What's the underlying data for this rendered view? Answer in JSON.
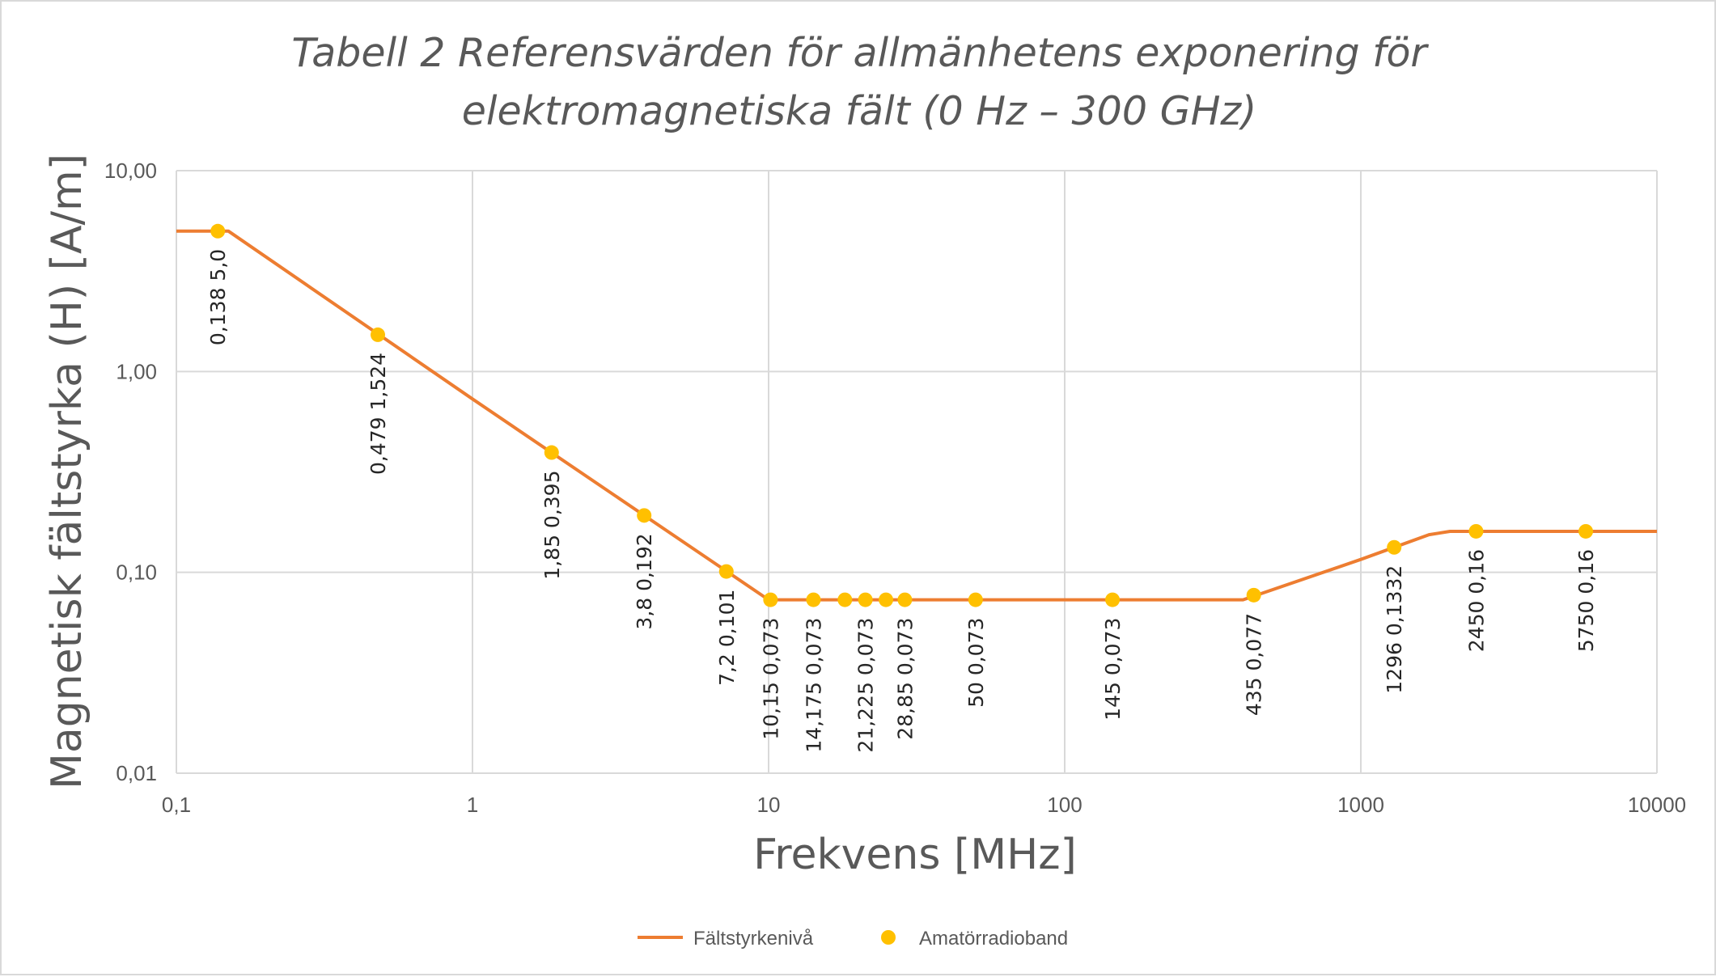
{
  "chart_data": {
    "type": "line",
    "title_lines": [
      "Tabell 2 Referensvärden för allmänhetens exponering för",
      "elektromagnetiska fält (0 Hz – 300 GHz)"
    ],
    "xlabel": "Frekvens [MHz]",
    "ylabel": "Magnetisk fältstyrka (H)  [A/m]",
    "x_scale": "log",
    "y_scale": "log",
    "xlim": [
      0.1,
      10000
    ],
    "ylim": [
      0.01,
      10
    ],
    "grid": true,
    "legend_position": "bottom",
    "x_ticks": [
      {
        "value": 0.1,
        "label": "0,1"
      },
      {
        "value": 1,
        "label": "1"
      },
      {
        "value": 10,
        "label": "10"
      },
      {
        "value": 100,
        "label": "100"
      },
      {
        "value": 1000,
        "label": "1000"
      },
      {
        "value": 10000,
        "label": "10000"
      }
    ],
    "y_ticks": [
      {
        "value": 0.01,
        "label": "0,01"
      },
      {
        "value": 0.1,
        "label": "0,10"
      },
      {
        "value": 1,
        "label": "1,00"
      },
      {
        "value": 10,
        "label": "10,00"
      }
    ],
    "series": [
      {
        "name": "Fältstyrkenivå",
        "kind": "line",
        "color": "#ED7D31",
        "points": [
          [
            0.1,
            5.0
          ],
          [
            0.15,
            5.0
          ],
          [
            1,
            0.73
          ],
          [
            10,
            0.073
          ],
          [
            400,
            0.073
          ],
          [
            1000,
            0.116
          ],
          [
            1700,
            0.154
          ],
          [
            2000,
            0.16
          ],
          [
            10000,
            0.16
          ]
        ]
      },
      {
        "name": "Amatörradioband",
        "kind": "scatter",
        "color": "#FFC000",
        "points": [
          {
            "x": 0.138,
            "y": 5.0,
            "label": "0,138  5,0"
          },
          {
            "x": 0.479,
            "y": 1.524,
            "label": "0,479  1,524"
          },
          {
            "x": 1.85,
            "y": 0.395,
            "label": "1,85  0,395"
          },
          {
            "x": 3.8,
            "y": 0.192,
            "label": "3,8  0,192"
          },
          {
            "x": 7.2,
            "y": 0.101,
            "label": "7,2  0,101"
          },
          {
            "x": 10.15,
            "y": 0.073,
            "label": "10,15  0,073"
          },
          {
            "x": 14.175,
            "y": 0.073,
            "label": "14,175  0,073"
          },
          {
            "x": 18.1,
            "y": 0.073,
            "label": ""
          },
          {
            "x": 21.225,
            "y": 0.073,
            "label": "21,225  0,073"
          },
          {
            "x": 24.9,
            "y": 0.073,
            "label": ""
          },
          {
            "x": 28.85,
            "y": 0.073,
            "label": "28,85  0,073"
          },
          {
            "x": 50,
            "y": 0.073,
            "label": "50  0,073"
          },
          {
            "x": 145,
            "y": 0.073,
            "label": "145  0,073"
          },
          {
            "x": 435,
            "y": 0.077,
            "label": "435  0,077"
          },
          {
            "x": 1296,
            "y": 0.1332,
            "label": "1296  0,1332"
          },
          {
            "x": 2450,
            "y": 0.16,
            "label": "2450  0,16"
          },
          {
            "x": 5750,
            "y": 0.16,
            "label": "5750  0,16"
          }
        ]
      }
    ]
  }
}
